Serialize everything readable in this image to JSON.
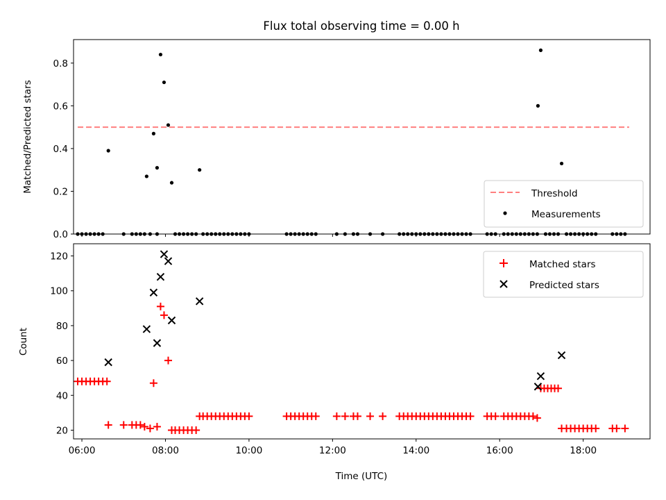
{
  "chart_data": [
    {
      "type": "scatter",
      "title": "Flux total observing time = 0.00 h",
      "ylabel": "Matched/Predicted stars",
      "xlim": [
        "05:48",
        "19:36"
      ],
      "ylim": [
        0,
        0.91
      ],
      "yticks": [
        "0.0",
        "0.2",
        "0.4",
        "0.6",
        "0.8"
      ],
      "legend": {
        "placement": "lower-right",
        "entries": [
          "Threshold",
          "Measurements"
        ]
      },
      "threshold": {
        "name": "Threshold",
        "x": [
          "05:54",
          "19:06"
        ],
        "y": 0.5,
        "color": "#ff7f7f",
        "style": "dashed"
      },
      "series": [
        {
          "name": "Measurements",
          "color": "#000000",
          "points": [
            [
              "05:54",
              0.0
            ],
            [
              "06:00",
              0.0
            ],
            [
              "06:06",
              0.0
            ],
            [
              "06:12",
              0.0
            ],
            [
              "06:18",
              0.0
            ],
            [
              "06:24",
              0.0
            ],
            [
              "06:30",
              0.0
            ],
            [
              "06:38",
              0.39
            ],
            [
              "07:00",
              0.0
            ],
            [
              "07:12",
              0.0
            ],
            [
              "07:18",
              0.0
            ],
            [
              "07:24",
              0.0
            ],
            [
              "07:30",
              0.0
            ],
            [
              "07:33",
              0.27
            ],
            [
              "07:43",
              0.47
            ],
            [
              "07:48",
              0.31
            ],
            [
              "07:53",
              0.84
            ],
            [
              "07:58",
              0.71
            ],
            [
              "08:04",
              0.51
            ],
            [
              "08:09",
              0.24
            ],
            [
              "07:38",
              0.0
            ],
            [
              "07:48",
              0.0
            ],
            [
              "08:14",
              0.0
            ],
            [
              "08:20",
              0.0
            ],
            [
              "08:26",
              0.0
            ],
            [
              "08:32",
              0.0
            ],
            [
              "08:38",
              0.0
            ],
            [
              "08:44",
              0.0
            ],
            [
              "08:49",
              0.3
            ],
            [
              "08:54",
              0.0
            ],
            [
              "09:00",
              0.0
            ],
            [
              "09:06",
              0.0
            ],
            [
              "09:12",
              0.0
            ],
            [
              "09:18",
              0.0
            ],
            [
              "09:24",
              0.0
            ],
            [
              "09:30",
              0.0
            ],
            [
              "09:36",
              0.0
            ],
            [
              "09:42",
              0.0
            ],
            [
              "09:48",
              0.0
            ],
            [
              "09:54",
              0.0
            ],
            [
              "10:00",
              0.0
            ],
            [
              "10:54",
              0.0
            ],
            [
              "11:00",
              0.0
            ],
            [
              "11:06",
              0.0
            ],
            [
              "11:12",
              0.0
            ],
            [
              "11:18",
              0.0
            ],
            [
              "11:24",
              0.0
            ],
            [
              "11:30",
              0.0
            ],
            [
              "11:36",
              0.0
            ],
            [
              "12:06",
              0.0
            ],
            [
              "12:18",
              0.0
            ],
            [
              "12:30",
              0.0
            ],
            [
              "12:36",
              0.0
            ],
            [
              "12:54",
              0.0
            ],
            [
              "13:12",
              0.0
            ],
            [
              "13:36",
              0.0
            ],
            [
              "13:42",
              0.0
            ],
            [
              "13:48",
              0.0
            ],
            [
              "13:54",
              0.0
            ],
            [
              "14:00",
              0.0
            ],
            [
              "14:06",
              0.0
            ],
            [
              "14:12",
              0.0
            ],
            [
              "14:18",
              0.0
            ],
            [
              "14:24",
              0.0
            ],
            [
              "14:30",
              0.0
            ],
            [
              "14:36",
              0.0
            ],
            [
              "14:42",
              0.0
            ],
            [
              "14:48",
              0.0
            ],
            [
              "14:54",
              0.0
            ],
            [
              "15:00",
              0.0
            ],
            [
              "15:06",
              0.0
            ],
            [
              "15:12",
              0.0
            ],
            [
              "15:18",
              0.0
            ],
            [
              "15:42",
              0.0
            ],
            [
              "15:48",
              0.0
            ],
            [
              "15:54",
              0.0
            ],
            [
              "16:06",
              0.0
            ],
            [
              "16:12",
              0.0
            ],
            [
              "16:18",
              0.0
            ],
            [
              "16:24",
              0.0
            ],
            [
              "16:30",
              0.0
            ],
            [
              "16:36",
              0.0
            ],
            [
              "16:42",
              0.0
            ],
            [
              "16:48",
              0.0
            ],
            [
              "16:54",
              0.0
            ],
            [
              "16:55",
              0.6
            ],
            [
              "16:59",
              0.86
            ],
            [
              "17:06",
              0.0
            ],
            [
              "17:12",
              0.0
            ],
            [
              "17:18",
              0.0
            ],
            [
              "17:24",
              0.0
            ],
            [
              "17:29",
              0.33
            ],
            [
              "17:36",
              0.0
            ],
            [
              "17:42",
              0.0
            ],
            [
              "17:48",
              0.0
            ],
            [
              "17:54",
              0.0
            ],
            [
              "18:00",
              0.0
            ],
            [
              "18:06",
              0.0
            ],
            [
              "18:12",
              0.0
            ],
            [
              "18:18",
              0.0
            ],
            [
              "18:42",
              0.0
            ],
            [
              "18:48",
              0.0
            ],
            [
              "18:54",
              0.0
            ],
            [
              "19:00",
              0.0
            ]
          ]
        }
      ]
    },
    {
      "type": "scatter",
      "xlabel": "Time (UTC)",
      "ylabel": "Count",
      "xlim": [
        "05:48",
        "19:36"
      ],
      "ylim": [
        15,
        127
      ],
      "xticks": [
        "06:00",
        "08:00",
        "10:00",
        "12:00",
        "14:00",
        "16:00",
        "18:00"
      ],
      "yticks": [
        "20",
        "40",
        "60",
        "80",
        "100",
        "120"
      ],
      "legend": {
        "placement": "upper-right",
        "entries": [
          "Matched stars",
          "Predicted stars"
        ]
      },
      "series": [
        {
          "name": "Matched stars",
          "marker": "plus",
          "color": "#ff0000",
          "points": [
            [
              "05:54",
              48
            ],
            [
              "06:00",
              48
            ],
            [
              "06:06",
              48
            ],
            [
              "06:12",
              48
            ],
            [
              "06:18",
              48
            ],
            [
              "06:24",
              48
            ],
            [
              "06:30",
              48
            ],
            [
              "06:36",
              48
            ],
            [
              "06:38",
              23
            ],
            [
              "07:00",
              23
            ],
            [
              "07:12",
              23
            ],
            [
              "07:18",
              23
            ],
            [
              "07:24",
              23
            ],
            [
              "07:30",
              22
            ],
            [
              "07:38",
              21
            ],
            [
              "07:48",
              22
            ],
            [
              "07:43",
              47
            ],
            [
              "07:53",
              91
            ],
            [
              "07:58",
              86
            ],
            [
              "08:04",
              60
            ],
            [
              "08:09",
              20
            ],
            [
              "08:14",
              20
            ],
            [
              "08:20",
              20
            ],
            [
              "08:26",
              20
            ],
            [
              "08:32",
              20
            ],
            [
              "08:38",
              20
            ],
            [
              "08:44",
              20
            ],
            [
              "08:49",
              28
            ],
            [
              "08:54",
              28
            ],
            [
              "09:00",
              28
            ],
            [
              "09:06",
              28
            ],
            [
              "09:12",
              28
            ],
            [
              "09:18",
              28
            ],
            [
              "09:24",
              28
            ],
            [
              "09:30",
              28
            ],
            [
              "09:36",
              28
            ],
            [
              "09:42",
              28
            ],
            [
              "09:48",
              28
            ],
            [
              "09:54",
              28
            ],
            [
              "10:00",
              28
            ],
            [
              "10:54",
              28
            ],
            [
              "11:00",
              28
            ],
            [
              "11:06",
              28
            ],
            [
              "11:12",
              28
            ],
            [
              "11:18",
              28
            ],
            [
              "11:24",
              28
            ],
            [
              "11:30",
              28
            ],
            [
              "11:36",
              28
            ],
            [
              "12:06",
              28
            ],
            [
              "12:18",
              28
            ],
            [
              "12:30",
              28
            ],
            [
              "12:36",
              28
            ],
            [
              "12:54",
              28
            ],
            [
              "13:12",
              28
            ],
            [
              "13:36",
              28
            ],
            [
              "13:42",
              28
            ],
            [
              "13:48",
              28
            ],
            [
              "13:54",
              28
            ],
            [
              "14:00",
              28
            ],
            [
              "14:06",
              28
            ],
            [
              "14:12",
              28
            ],
            [
              "14:18",
              28
            ],
            [
              "14:24",
              28
            ],
            [
              "14:30",
              28
            ],
            [
              "14:36",
              28
            ],
            [
              "14:42",
              28
            ],
            [
              "14:48",
              28
            ],
            [
              "14:54",
              28
            ],
            [
              "15:00",
              28
            ],
            [
              "15:06",
              28
            ],
            [
              "15:12",
              28
            ],
            [
              "15:18",
              28
            ],
            [
              "15:42",
              28
            ],
            [
              "15:48",
              28
            ],
            [
              "15:54",
              28
            ],
            [
              "16:06",
              28
            ],
            [
              "16:12",
              28
            ],
            [
              "16:18",
              28
            ],
            [
              "16:24",
              28
            ],
            [
              "16:30",
              28
            ],
            [
              "16:36",
              28
            ],
            [
              "16:42",
              28
            ],
            [
              "16:48",
              28
            ],
            [
              "16:54",
              27
            ],
            [
              "16:59",
              44
            ],
            [
              "17:04",
              44
            ],
            [
              "17:09",
              44
            ],
            [
              "17:14",
              44
            ],
            [
              "17:19",
              44
            ],
            [
              "17:24",
              44
            ],
            [
              "17:29",
              21
            ],
            [
              "17:36",
              21
            ],
            [
              "17:42",
              21
            ],
            [
              "17:48",
              21
            ],
            [
              "17:54",
              21
            ],
            [
              "18:00",
              21
            ],
            [
              "18:06",
              21
            ],
            [
              "18:12",
              21
            ],
            [
              "18:18",
              21
            ],
            [
              "18:42",
              21
            ],
            [
              "18:48",
              21
            ],
            [
              "19:00",
              21
            ]
          ]
        },
        {
          "name": "Predicted stars",
          "marker": "x",
          "color": "#000000",
          "points": [
            [
              "06:38",
              59
            ],
            [
              "07:33",
              78
            ],
            [
              "07:43",
              99
            ],
            [
              "07:48",
              70
            ],
            [
              "07:53",
              108
            ],
            [
              "07:58",
              121
            ],
            [
              "08:04",
              117
            ],
            [
              "08:09",
              83
            ],
            [
              "08:49",
              94
            ],
            [
              "16:55",
              45
            ],
            [
              "16:59",
              51
            ],
            [
              "17:29",
              63
            ]
          ]
        }
      ]
    }
  ]
}
